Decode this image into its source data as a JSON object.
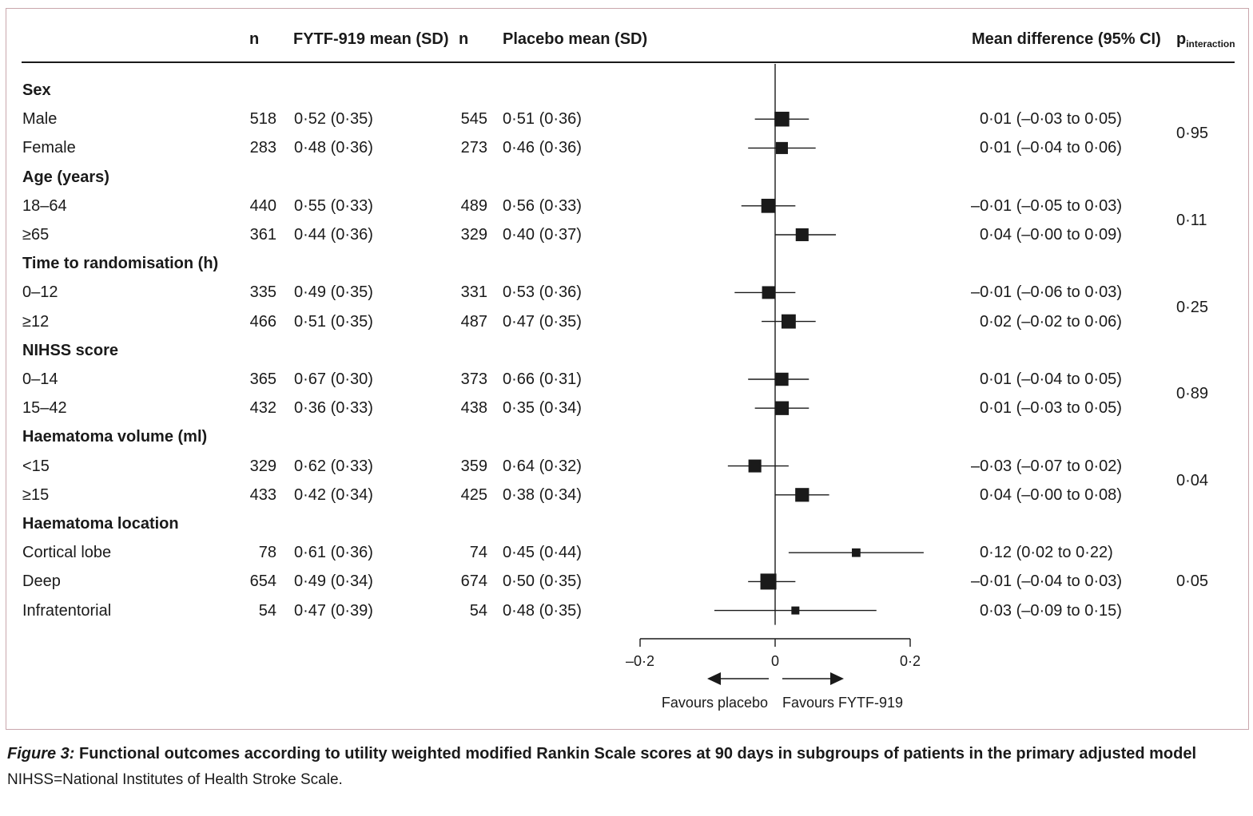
{
  "headers": {
    "n1": "n",
    "fytf": "FYTF-919 mean (SD)",
    "n2": "n",
    "placebo": "Placebo mean (SD)",
    "md": "Mean difference (95% CI)",
    "p": "p",
    "p_sub": "interaction"
  },
  "chart_data": {
    "type": "forest",
    "xlim": [
      -0.2,
      0.2
    ],
    "ticks": [
      -0.2,
      0,
      0.2
    ],
    "tick_labels": [
      "–0·2",
      "0",
      "0·2"
    ],
    "reference_line": 0,
    "arrow_left_label": "Favours placebo",
    "arrow_right_label": "Favours FYTF-919",
    "groups": [
      {
        "label": "Sex",
        "p_interaction": "0·95",
        "rows": [
          {
            "label": "Male",
            "n_fytf": "518",
            "fytf": "0·52 (0·35)",
            "n_placebo": "545",
            "placebo": "0·51 (0·36)",
            "md_text": "0·01 (–0·03 to 0·05)",
            "md": 0.01,
            "lo": -0.03,
            "hi": 0.05
          },
          {
            "label": "Female",
            "n_fytf": "283",
            "fytf": "0·48 (0·36)",
            "n_placebo": "273",
            "placebo": "0·46 (0·36)",
            "md_text": "0·01 (–0·04 to 0·06)",
            "md": 0.01,
            "lo": -0.04,
            "hi": 0.06
          }
        ]
      },
      {
        "label": "Age (years)",
        "p_interaction": "0·11",
        "rows": [
          {
            "label": "18–64",
            "n_fytf": "440",
            "fytf": "0·55 (0·33)",
            "n_placebo": "489",
            "placebo": "0·56 (0·33)",
            "md_text": "–0·01 (–0·05 to 0·03)",
            "md": -0.01,
            "lo": -0.05,
            "hi": 0.03
          },
          {
            "label": "≥65",
            "n_fytf": "361",
            "fytf": "0·44 (0·36)",
            "n_placebo": "329",
            "placebo": "0·40 (0·37)",
            "md_text": "0·04 (–0·00 to 0·09)",
            "md": 0.04,
            "lo": -0.0,
            "hi": 0.09
          }
        ]
      },
      {
        "label": "Time to randomisation (h)",
        "p_interaction": "0·25",
        "rows": [
          {
            "label": "0–12",
            "n_fytf": "335",
            "fytf": "0·49 (0·35)",
            "n_placebo": "331",
            "placebo": "0·53 (0·36)",
            "md_text": "–0·01 (–0·06 to 0·03)",
            "md": -0.01,
            "lo": -0.06,
            "hi": 0.03
          },
          {
            "label": "≥12",
            "n_fytf": "466",
            "fytf": "0·51 (0·35)",
            "n_placebo": "487",
            "placebo": "0·47 (0·35)",
            "md_text": "0·02 (–0·02 to 0·06)",
            "md": 0.02,
            "lo": -0.02,
            "hi": 0.06
          }
        ]
      },
      {
        "label": "NIHSS score",
        "p_interaction": "0·89",
        "rows": [
          {
            "label": "0–14",
            "n_fytf": "365",
            "fytf": "0·67 (0·30)",
            "n_placebo": "373",
            "placebo": "0·66 (0·31)",
            "md_text": "0·01 (–0·04 to 0·05)",
            "md": 0.01,
            "lo": -0.04,
            "hi": 0.05
          },
          {
            "label": "15–42",
            "n_fytf": "432",
            "fytf": "0·36 (0·33)",
            "n_placebo": "438",
            "placebo": "0·35 (0·34)",
            "md_text": "0·01 (–0·03 to 0·05)",
            "md": 0.01,
            "lo": -0.03,
            "hi": 0.05
          }
        ]
      },
      {
        "label": "Haematoma volume (ml)",
        "p_interaction": "0·04",
        "rows": [
          {
            "label": "<15",
            "n_fytf": "329",
            "fytf": "0·62 (0·33)",
            "n_placebo": "359",
            "placebo": "0·64 (0·32)",
            "md_text": "–0·03 (–0·07 to 0·02)",
            "md": -0.03,
            "lo": -0.07,
            "hi": 0.02
          },
          {
            "label": "≥15",
            "n_fytf": "433",
            "fytf": "0·42 (0·34)",
            "n_placebo": "425",
            "placebo": "0·38 (0·34)",
            "md_text": "0·04 (–0·00 to 0·08)",
            "md": 0.04,
            "lo": -0.0,
            "hi": 0.08
          }
        ]
      },
      {
        "label": "Haematoma location",
        "p_interaction": "0·05",
        "rows": [
          {
            "label": "Cortical lobe",
            "n_fytf": "78",
            "fytf": "0·61 (0·36)",
            "n_placebo": "74",
            "placebo": "0·45 (0·44)",
            "md_text": "0·12 (0·02 to 0·22)",
            "md": 0.12,
            "lo": 0.02,
            "hi": 0.22
          },
          {
            "label": "Deep",
            "n_fytf": "654",
            "fytf": "0·49 (0·34)",
            "n_placebo": "674",
            "placebo": "0·50 (0·35)",
            "md_text": "–0·01 (–0·04 to 0·03)",
            "md": -0.01,
            "lo": -0.04,
            "hi": 0.03
          },
          {
            "label": "Infratentorial",
            "n_fytf": "54",
            "fytf": "0·47 (0·39)",
            "n_placebo": "54",
            "placebo": "0·48 (0·35)",
            "md_text": "0·03 (–0·09 to 0·15)",
            "md": 0.03,
            "lo": -0.09,
            "hi": 0.15
          }
        ]
      }
    ]
  },
  "caption": {
    "figure_label": "Figure 3:",
    "text": " Functional outcomes according to utility weighted modified Rankin Scale scores at 90 days in subgroups of patients in the primary adjusted model"
  },
  "footnote": "NIHSS=National Institutes of Health Stroke Scale."
}
